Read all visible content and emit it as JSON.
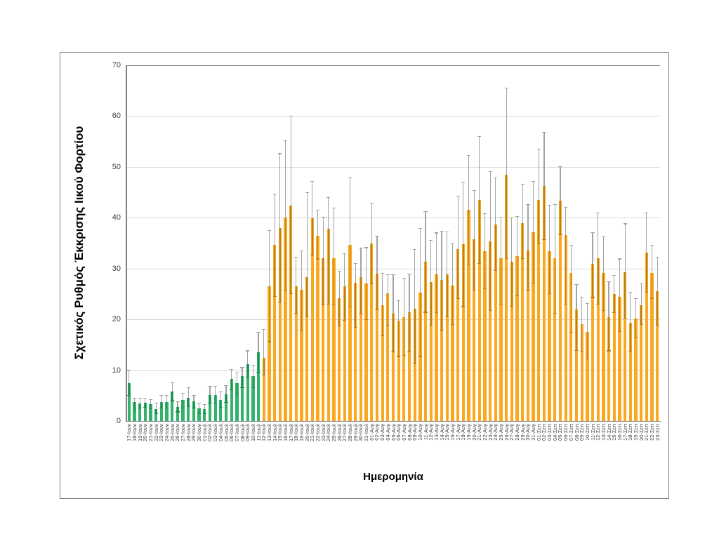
{
  "chart_data": {
    "type": "bar",
    "title": "",
    "xlabel": "Ημερομηνία",
    "ylabel": "Σχετικός Ρυθμός Έκκρισης Ιικού Φορτίου",
    "ylim": [
      0,
      70
    ],
    "yticks": [
      0,
      10,
      20,
      30,
      40,
      50,
      60,
      70
    ],
    "grid": "horizontal",
    "legend": "none",
    "error_bars": true,
    "colors": {
      "green_bar": "#33b26b",
      "green_overlay": "#1d8a50",
      "orange_bar": "#fca81f",
      "orange_overlay": "#b5821d",
      "whisker": "#a3a3a3",
      "gridline": "#d9d9d9",
      "axis": "#808080",
      "frame_border": "#7f7f7f",
      "tick_text": "#404040"
    },
    "series": [
      {
        "name": "early-period-green",
        "color": "#33b26b",
        "overlay_color": "#1d8a50",
        "labels": [
          "17-Ιουν",
          "18-Ιουν",
          "19-Ιουν",
          "20-Ιουν",
          "21-Ιουν",
          "22-Ιουν",
          "23-Ιουν",
          "24-Ιουν",
          "25-Ιουν",
          "26-Ιουν",
          "27-Ιουν",
          "28-Ιουν",
          "29-Ιουν",
          "30-Ιουν",
          "01-Ιουλ",
          "02-Ιουλ",
          "03-Ιουλ",
          "04-Ιουλ",
          "05-Ιουλ",
          "06-Ιουλ",
          "07-Ιουλ",
          "08-Ιουλ",
          "09-Ιουλ",
          "10-Ιουλ",
          "11-Ιουλ"
        ],
        "values": [
          7.5,
          3.7,
          3.5,
          3.6,
          3.3,
          2.3,
          3.7,
          3.8,
          5.8,
          2.8,
          4.1,
          4.6,
          3.9,
          2.5,
          2.3,
          5.1,
          5.1,
          4.1,
          5.3,
          8.3,
          7.4,
          8.8,
          11.2,
          8.8,
          13.5
        ],
        "err_lo": [
          5.0,
          2.1,
          2.5,
          2.7,
          2.4,
          1.5,
          2.5,
          2.6,
          4.0,
          1.8,
          2.5,
          2.8,
          2.5,
          1.5,
          1.4,
          3.5,
          3.5,
          2.7,
          3.6,
          6.2,
          5.3,
          6.5,
          8.5,
          6.5,
          9.5
        ],
        "err_hi": [
          10.0,
          4.5,
          4.5,
          4.5,
          4.2,
          3.5,
          5.0,
          5.0,
          7.5,
          3.8,
          5.5,
          6.5,
          5.0,
          3.5,
          3.2,
          6.8,
          6.8,
          5.7,
          7.0,
          10.2,
          9.5,
          10.5,
          13.8,
          11.0,
          17.5
        ]
      },
      {
        "name": "late-period-orange",
        "color": "#fca81f",
        "overlay_color": "#b5821d",
        "labels": [
          "12-Ιουλ",
          "13-Ιουλ",
          "14-Ιουλ",
          "15-Ιουλ",
          "16-Ιουλ",
          "17-Ιουλ",
          "18-Ιουλ",
          "19-Ιουλ",
          "20-Ιουλ",
          "21-Ιουλ",
          "22-Ιουλ",
          "23-Ιουλ",
          "24-Ιουλ",
          "25-Ιουλ",
          "26-Ιουλ",
          "27-Ιουλ",
          "28-Ιουλ",
          "29-Ιουλ",
          "30-Ιουλ",
          "31-Ιουλ",
          "01-Αυγ",
          "02-Αυγ",
          "03-Αυγ",
          "04-Αυγ",
          "05-Αυγ",
          "06-Αυγ",
          "07-Αυγ",
          "08-Αυγ",
          "09-Αυγ",
          "10-Αυγ",
          "11-Αυγ",
          "12-Αυγ",
          "13-Αυγ",
          "14-Αυγ",
          "15-Αυγ",
          "16-Αυγ",
          "17-Αυγ",
          "18-Αυγ",
          "19-Αυγ",
          "20-Αυγ",
          "21-Αυγ",
          "22-Αυγ",
          "23-Αυγ",
          "24-Αυγ",
          "25-Αυγ",
          "26-Αυγ",
          "27-Αυγ",
          "28-Αυγ",
          "29-Αυγ",
          "30-Αυγ",
          "31-Αυγ",
          "01-Σεπ",
          "02-Σεπ",
          "03-Σεπ",
          "04-Σεπ",
          "05-Σεπ",
          "06-Σεπ",
          "07-Σεπ",
          "08-Σεπ",
          "09-Σεπ",
          "10-Σεπ",
          "11-Σεπ",
          "12-Σεπ",
          "13-Σεπ",
          "14-Σεπ",
          "15-Σεπ",
          "16-Σεπ",
          "17-Σεπ",
          "18-Σεπ",
          "19-Σεπ",
          "20-Σεπ",
          "21-Σεπ",
          "22-Σεπ",
          "23-Σεπ"
        ],
        "values": [
          12.5,
          26.5,
          34.6,
          38.0,
          40.1,
          42.4,
          26.5,
          25.8,
          28.3,
          39.9,
          36.4,
          32.0,
          37.8,
          32.0,
          24.1,
          26.5,
          34.6,
          27.2,
          28.3,
          27.0,
          35.0,
          29.0,
          22.8,
          25.1,
          21.2,
          19.8,
          20.5,
          21.4,
          22.1,
          25.3,
          31.3,
          27.4,
          28.8,
          27.7,
          28.9,
          26.7,
          33.9,
          34.8,
          41.5,
          35.7,
          43.5,
          33.4,
          35.3,
          38.7,
          32.0,
          48.5,
          31.3,
          32.5,
          38.9,
          33.6,
          37.1,
          43.5,
          46.3,
          33.4,
          32.0,
          43.4,
          36.6,
          29.1,
          21.9,
          19.1,
          17.6,
          30.9,
          32.0,
          29.1,
          20.5,
          25.0,
          24.4,
          29.3,
          19.4,
          20.2,
          22.8,
          33.1,
          29.1,
          25.6
        ],
        "err_lo": [
          9.0,
          15.6,
          24.5,
          23.3,
          25.6,
          25.1,
          21.2,
          17.9,
          20.5,
          32.7,
          31.9,
          22.8,
          23.0,
          22.8,
          18.7,
          19.8,
          22.4,
          18.4,
          21.0,
          20.0,
          27.0,
          21.9,
          16.8,
          18.7,
          13.6,
          12.7,
          12.9,
          13.6,
          11.3,
          12.7,
          21.4,
          18.9,
          21.3,
          17.9,
          20.5,
          19.0,
          24.1,
          22.5,
          30.9,
          25.8,
          31.0,
          26.0,
          21.7,
          29.6,
          23.0,
          32.0,
          22.6,
          24.7,
          32.0,
          25.8,
          27.0,
          34.8,
          35.7,
          25.1,
          21.2,
          36.6,
          23.0,
          17.5,
          13.9,
          13.6,
          12.2,
          24.3,
          23.0,
          21.8,
          13.8,
          21.3,
          17.6,
          20.2,
          13.7,
          16.4,
          19.0,
          25.3,
          24.1,
          18.9
        ],
        "err_hi": [
          18.0,
          37.5,
          44.7,
          52.6,
          55.1,
          60.0,
          32.2,
          33.5,
          44.9,
          47.2,
          41.5,
          40.1,
          44.0,
          41.9,
          29.5,
          32.9,
          47.8,
          31.0,
          34.0,
          34.1,
          42.9,
          36.4,
          29.1,
          28.8,
          28.8,
          23.7,
          28.1,
          28.9,
          33.7,
          37.9,
          41.2,
          35.6,
          37.0,
          37.3,
          37.2,
          34.8,
          44.2,
          47.0,
          52.3,
          45.3,
          56.0,
          40.8,
          49.1,
          47.8,
          40.0,
          65.5,
          40.0,
          40.3,
          46.6,
          42.6,
          47.1,
          53.5,
          56.8,
          42.5,
          42.6,
          50.1,
          42.0,
          34.6,
          26.8,
          24.4,
          23.1,
          37.1,
          40.9,
          36.3,
          27.4,
          28.6,
          31.9,
          38.8,
          25.3,
          24.1,
          27.0,
          40.9,
          34.6,
          32.3
        ]
      }
    ]
  }
}
